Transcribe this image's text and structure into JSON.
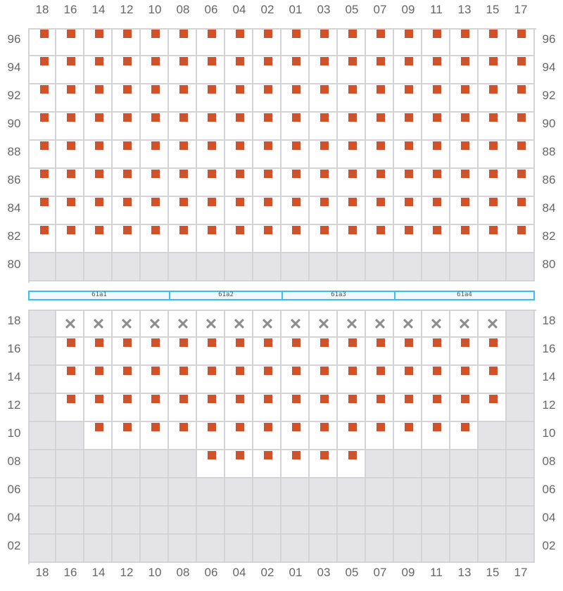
{
  "columns": [
    "18",
    "16",
    "14",
    "12",
    "10",
    "08",
    "06",
    "04",
    "02",
    "01",
    "03",
    "05",
    "07",
    "09",
    "11",
    "13",
    "15",
    "17"
  ],
  "top_block": {
    "rows": [
      {
        "label": "96",
        "cells": "ssssssssssssssssss"
      },
      {
        "label": "94",
        "cells": "ssssssssssssssssss"
      },
      {
        "label": "92",
        "cells": "ssssssssssssssssss"
      },
      {
        "label": "90",
        "cells": "ssssssssssssssssss"
      },
      {
        "label": "88",
        "cells": "ssssssssssssssssss"
      },
      {
        "label": "86",
        "cells": "ssssssssssssssssss"
      },
      {
        "label": "84",
        "cells": "ssssssssssssssssss"
      },
      {
        "label": "82",
        "cells": "ssssssssssssssssss"
      },
      {
        "label": "80",
        "cells": "gggggggggggggggggg"
      }
    ]
  },
  "sections": [
    {
      "label": "61a1",
      "span": 5
    },
    {
      "label": "61a2",
      "span": 4
    },
    {
      "label": "61a3",
      "span": 4
    },
    {
      "label": "61a4",
      "span": 5
    }
  ],
  "bottom_block": {
    "rows": [
      {
        "label": "18",
        "cells": "gxxxxxxxxxxxxxxxxg"
      },
      {
        "label": "16",
        "cells": "gssssssssssssssssg"
      },
      {
        "label": "14",
        "cells": "gssssssssssssssssg"
      },
      {
        "label": "12",
        "cells": "gssssssssssssssssg"
      },
      {
        "label": "10",
        "cells": "ggsssssssssssssseg"
      },
      {
        "label": "08",
        "cells": "ggggggssssssgggggg"
      },
      {
        "label": "06",
        "cells": "gggggggggggggggggg"
      },
      {
        "label": "04",
        "cells": "gggggggggggggggggg"
      },
      {
        "label": "02",
        "cells": "gggggggggggggggggg"
      }
    ]
  },
  "legend_codes": {
    "s": "available-seat",
    "x": "unavailable-seat",
    "g": "no-seat",
    "e": "empty"
  },
  "colors": {
    "seat": "#d0522a",
    "section_border": "#38bdf8",
    "no_seat": "#e4e4e7"
  }
}
